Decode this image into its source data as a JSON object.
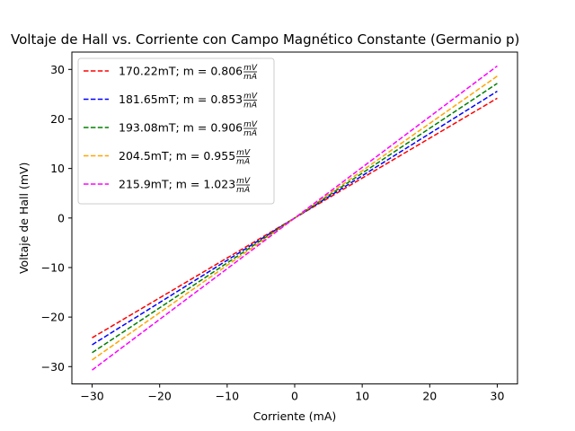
{
  "chart_data": {
    "type": "line",
    "title": "Voltaje de Hall vs. Corriente con Campo Magnético Constante (Germanio p)",
    "xlabel": "Corriente (mA)",
    "ylabel": "Voltaje de Hall (mV)",
    "xlim": [
      -33,
      33
    ],
    "ylim": [
      -33.5,
      33.5
    ],
    "xticks": [
      -30,
      -20,
      -10,
      0,
      10,
      20,
      30
    ],
    "yticks": [
      -30,
      -20,
      -10,
      0,
      10,
      20,
      30
    ],
    "grid": false,
    "legend_position": "top-left",
    "series": [
      {
        "name": "170.22mT; m = 0.806",
        "unit_num": "mV",
        "unit_den": "mA",
        "color": "#ff0000",
        "slope": 0.806,
        "intercept": 0.0,
        "x": [
          -30,
          30
        ],
        "y": [
          -24.18,
          24.18
        ]
      },
      {
        "name": "181.65mT; m = 0.853",
        "unit_num": "mV",
        "unit_den": "mA",
        "color": "#0000ff",
        "slope": 0.853,
        "intercept": 0.0,
        "x": [
          -30,
          30
        ],
        "y": [
          -25.59,
          25.59
        ]
      },
      {
        "name": "193.08mT; m = 0.906",
        "unit_num": "mV",
        "unit_den": "mA",
        "color": "#008000",
        "slope": 0.906,
        "intercept": 0.0,
        "x": [
          -30,
          30
        ],
        "y": [
          -27.18,
          27.18
        ]
      },
      {
        "name": "204.5mT; m = 0.955",
        "unit_num": "mV",
        "unit_den": "mA",
        "color": "#ffa500",
        "slope": 0.955,
        "intercept": 0.0,
        "x": [
          -30,
          30
        ],
        "y": [
          -28.65,
          28.65
        ]
      },
      {
        "name": "215.9mT; m = 1.023",
        "unit_num": "mV",
        "unit_den": "mA",
        "color": "#ff00ff",
        "slope": 1.023,
        "intercept": 0.0,
        "x": [
          -30,
          30
        ],
        "y": [
          -30.69,
          30.69
        ]
      }
    ]
  }
}
